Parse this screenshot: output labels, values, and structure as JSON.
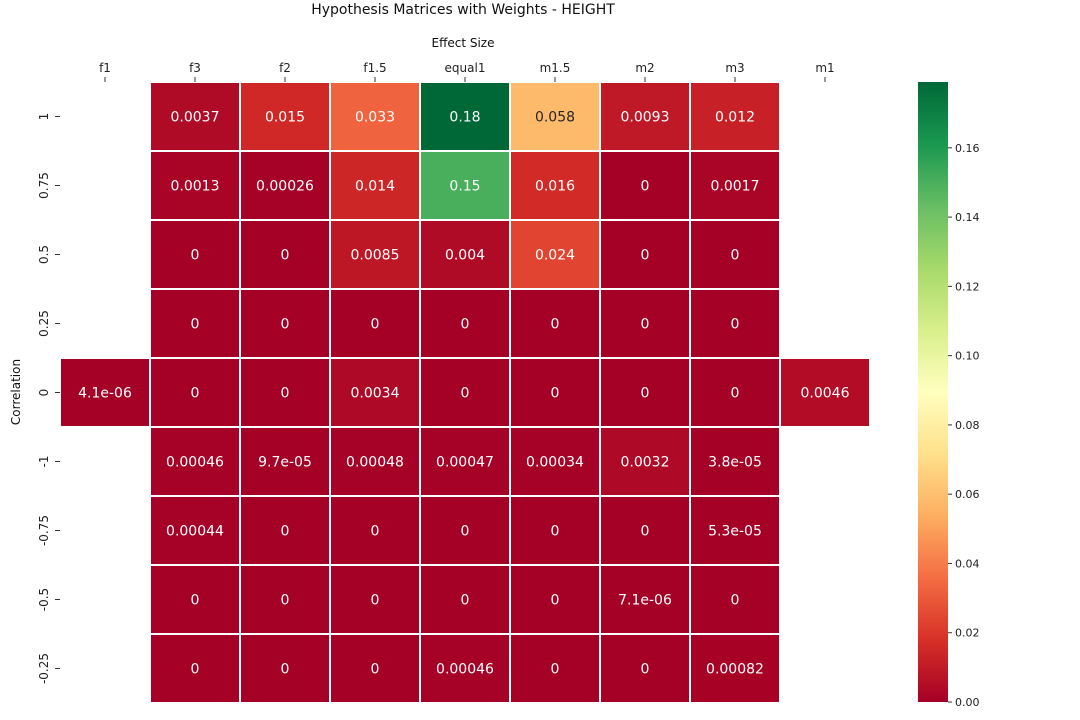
{
  "chart_data": {
    "type": "heatmap",
    "title": "Hypothesis Matrices with Weights - HEIGHT",
    "xlabel": "Effect Size",
    "ylabel": "Correlation",
    "x_categories": [
      "f1",
      "f3",
      "f2",
      "f1.5",
      "equal1",
      "m1.5",
      "m2",
      "m3",
      "m1"
    ],
    "y_categories": [
      "1",
      "0.75",
      "0.5",
      "0.25",
      "0",
      "-1",
      "-0.75",
      "-0.5",
      "-0.25"
    ],
    "values": [
      [
        null,
        0.0037,
        0.015,
        0.033,
        0.18,
        0.058,
        0.0093,
        0.012,
        null
      ],
      [
        null,
        0.0013,
        0.00026,
        0.014,
        0.15,
        0.016,
        0,
        0.0017,
        null
      ],
      [
        null,
        0,
        0,
        0.0085,
        0.004,
        0.024,
        0,
        0,
        null
      ],
      [
        null,
        0,
        0,
        0,
        0,
        0,
        0,
        0,
        null
      ],
      [
        4.1e-06,
        0,
        0,
        0.0034,
        0,
        0,
        0,
        0,
        0.0046
      ],
      [
        null,
        0.00046,
        9.7e-05,
        0.00048,
        0.00047,
        0.00034,
        0.0032,
        3.8e-05,
        null
      ],
      [
        null,
        0.00044,
        0,
        0,
        0,
        0,
        0,
        5.3e-05,
        null
      ],
      [
        null,
        0,
        0,
        0,
        0,
        0,
        7.1e-06,
        0,
        null
      ],
      [
        null,
        0,
        0,
        0,
        0.00046,
        0,
        0,
        0.00082,
        null
      ]
    ],
    "labels": [
      [
        null,
        "0.0037",
        "0.015",
        "0.033",
        "0.18",
        "0.058",
        "0.0093",
        "0.012",
        null
      ],
      [
        null,
        "0.0013",
        "0.00026",
        "0.014",
        "0.15",
        "0.016",
        "0",
        "0.0017",
        null
      ],
      [
        null,
        "0",
        "0",
        "0.0085",
        "0.004",
        "0.024",
        "0",
        "0",
        null
      ],
      [
        null,
        "0",
        "0",
        "0",
        "0",
        "0",
        "0",
        "0",
        null
      ],
      [
        "4.1e-06",
        "0",
        "0",
        "0.0034",
        "0",
        "0",
        "0",
        "0",
        "0.0046"
      ],
      [
        null,
        "0.00046",
        "9.7e-05",
        "0.00048",
        "0.00047",
        "0.00034",
        "0.0032",
        "3.8e-05",
        null
      ],
      [
        null,
        "0.00044",
        "0",
        "0",
        "0",
        "0",
        "0",
        "5.3e-05",
        null
      ],
      [
        null,
        "0",
        "0",
        "0",
        "0",
        "0",
        "7.1e-06",
        "0",
        null
      ],
      [
        null,
        "0",
        "0",
        "0",
        "0.00046",
        "0",
        "0",
        "0.00082",
        null
      ]
    ],
    "colorbar": {
      "colormap": "RdYlGn",
      "vmin": 0,
      "vmax": 0.179,
      "ticks": [
        0.0,
        0.02,
        0.04,
        0.06,
        0.08,
        0.1,
        0.12,
        0.14,
        0.16
      ],
      "tick_labels": [
        "0.00",
        "0.02",
        "0.04",
        "0.06",
        "0.08",
        "0.10",
        "0.12",
        "0.14",
        "0.16"
      ]
    },
    "x_axis_position": "top",
    "grid": false
  }
}
